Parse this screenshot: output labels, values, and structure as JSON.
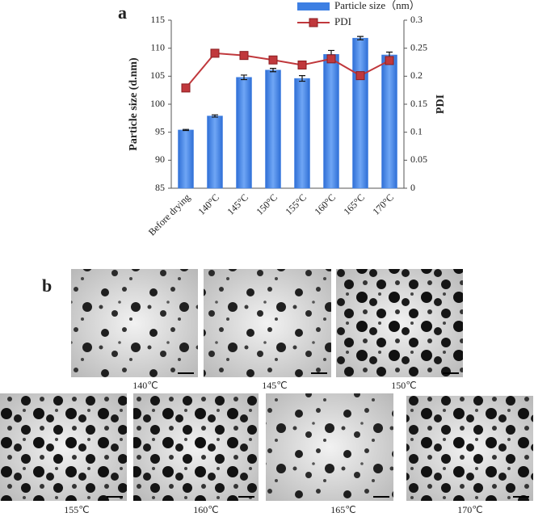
{
  "chart_data": {
    "type": "bar",
    "panel_label": "a",
    "categories": [
      "Before drying",
      "140°C",
      "145°C",
      "150°C",
      "155°C",
      "160°C",
      "165°C",
      "170°C"
    ],
    "series": [
      {
        "name": "Particle size（nm）",
        "type": "bar",
        "color": "#3d7fe3",
        "values": [
          95.4,
          97.9,
          104.8,
          106.1,
          104.6,
          108.9,
          111.8,
          108.8
        ],
        "errors": [
          0.1,
          0.2,
          0.4,
          0.3,
          0.5,
          0.7,
          0.3,
          0.5
        ]
      },
      {
        "name": "PDI",
        "type": "line",
        "axis": "y2",
        "color": "#c0383c",
        "values": [
          0.179,
          0.241,
          0.237,
          0.229,
          0.22,
          0.231,
          0.201,
          0.228
        ]
      }
    ],
    "y_label": "Particle size (d.nm)",
    "y2_label": "PDI",
    "ylim": [
      85,
      115
    ],
    "yticks": [
      85,
      90,
      95,
      100,
      105,
      110,
      115
    ],
    "y2lim": [
      0,
      0.3
    ],
    "y2ticks": [
      0,
      0.05,
      0.1,
      0.15,
      0.2,
      0.25,
      0.3
    ]
  },
  "figure_b": {
    "label": "b",
    "images": [
      {
        "caption": "140℃"
      },
      {
        "caption": "145℃"
      },
      {
        "caption": "150℃"
      },
      {
        "caption": "155℃"
      },
      {
        "caption": "160℃"
      },
      {
        "caption": "165℃"
      },
      {
        "caption": "170℃"
      }
    ]
  }
}
